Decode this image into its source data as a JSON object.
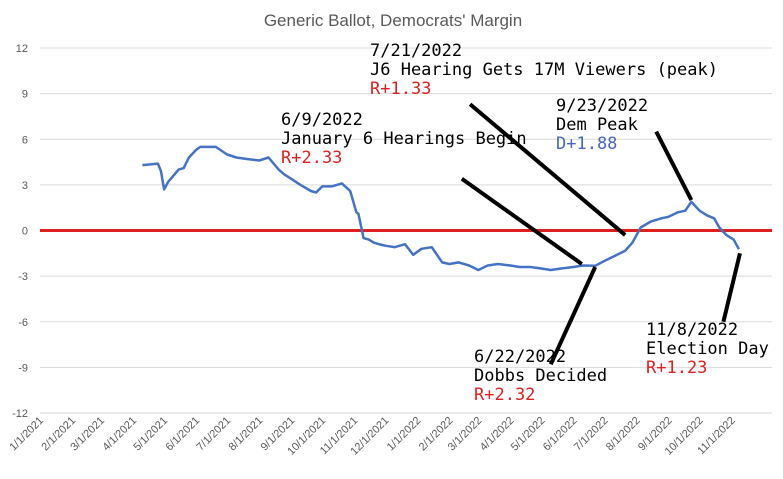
{
  "chart_data": {
    "type": "line",
    "title": "Generic Ballot, Democrats' Margin",
    "xlabel": "",
    "ylabel": "",
    "ylim": [
      -12,
      12
    ],
    "yticks": [
      "12",
      "9",
      "6",
      "3",
      "0",
      "-3",
      "-6",
      "-9",
      "-12"
    ],
    "xlim": [
      "2021-01-01",
      "2022-12-10"
    ],
    "xticks": [
      "1/1/2021",
      "2/1/2021",
      "3/1/2021",
      "4/1/2021",
      "5/1/2021",
      "6/1/2021",
      "7/1/2021",
      "8/1/2021",
      "9/1/2021",
      "10/1/2021",
      "11/1/2021",
      "12/1/2021",
      "1/1/2022",
      "2/1/2022",
      "3/1/2022",
      "4/1/2022",
      "5/1/2022",
      "6/1/2022",
      "7/1/2022",
      "8/1/2022",
      "9/1/2022",
      "10/1/2022",
      "11/1/2022"
    ],
    "grid": true,
    "zero_line_color": "#e02020",
    "series_color": "#4472c4",
    "series": [
      {
        "name": "",
        "x": [
          "2021-04-10",
          "2021-04-25",
          "2021-04-28",
          "2021-05-01",
          "2021-05-05",
          "2021-05-15",
          "2021-05-20",
          "2021-05-25",
          "2021-06-01",
          "2021-06-05",
          "2021-06-20",
          "2021-07-01",
          "2021-07-10",
          "2021-07-20",
          "2021-08-01",
          "2021-08-10",
          "2021-08-20",
          "2021-08-25",
          "2021-09-01",
          "2021-09-10",
          "2021-09-20",
          "2021-09-25",
          "2021-10-01",
          "2021-10-10",
          "2021-10-20",
          "2021-10-28",
          "2021-11-03",
          "2021-11-05",
          "2021-11-10",
          "2021-11-15",
          "2021-11-20",
          "2021-11-25",
          "2021-12-01",
          "2021-12-10",
          "2021-12-20",
          "2021-12-28",
          "2022-01-05",
          "2022-01-15",
          "2022-01-25",
          "2022-02-01",
          "2022-02-10",
          "2022-02-20",
          "2022-03-01",
          "2022-03-10",
          "2022-03-20",
          "2022-04-01",
          "2022-04-10",
          "2022-04-20",
          "2022-05-01",
          "2022-05-10",
          "2022-05-20",
          "2022-06-01",
          "2022-06-10",
          "2022-06-22",
          "2022-07-01",
          "2022-07-10",
          "2022-07-21",
          "2022-07-28",
          "2022-08-05",
          "2022-08-15",
          "2022-08-25",
          "2022-09-01",
          "2022-09-10",
          "2022-09-17",
          "2022-09-23",
          "2022-10-01",
          "2022-10-08",
          "2022-10-15",
          "2022-10-20",
          "2022-10-27",
          "2022-11-03",
          "2022-11-08"
        ],
        "y": [
          4.3,
          4.4,
          3.9,
          2.7,
          3.2,
          4.0,
          4.1,
          4.8,
          5.3,
          5.5,
          5.5,
          5.0,
          4.8,
          4.7,
          4.6,
          4.8,
          4.0,
          3.7,
          3.4,
          3.0,
          2.6,
          2.5,
          2.9,
          2.9,
          3.1,
          2.6,
          1.2,
          1.1,
          -0.5,
          -0.6,
          -0.8,
          -0.9,
          -1.0,
          -1.1,
          -0.9,
          -1.6,
          -1.2,
          -1.1,
          -2.1,
          -2.2,
          -2.1,
          -2.3,
          -2.6,
          -2.3,
          -2.2,
          -2.3,
          -2.4,
          -2.4,
          -2.5,
          -2.6,
          -2.5,
          -2.4,
          -2.3,
          -2.32,
          -2.0,
          -1.7,
          -1.33,
          -0.8,
          0.2,
          0.6,
          0.8,
          0.9,
          1.2,
          1.3,
          1.88,
          1.3,
          1.0,
          0.8,
          0.2,
          -0.3,
          -0.6,
          -1.23
        ]
      }
    ],
    "annotations": [
      {
        "date_text": "7/21/2022",
        "event_text": "J6 Hearing Gets 17M Viewers (peak)",
        "margin_text": "R+1.33",
        "margin_color": "#e02020",
        "from_date": "2022-07-21",
        "from_value": -0.3,
        "to_date": "2022-02-21",
        "to_value": 8.3
      },
      {
        "date_text": "6/9/2022",
        "event_text": "January 6 Hearings Begin",
        "margin_text": "R+2.33",
        "margin_color": "#e02020",
        "from_date": "2022-06-09",
        "from_value": -2.2,
        "to_date": "2022-02-13",
        "to_value": 3.4
      },
      {
        "date_text": "9/23/2022",
        "event_text": "Dem Peak",
        "margin_text": "D+1.88",
        "margin_color": "#4466bb",
        "from_date": "2022-09-23",
        "from_value": 2.0,
        "to_date": "2022-08-20",
        "to_value": 6.5
      },
      {
        "date_text": "6/22/2022",
        "event_text": "Dobbs Decided",
        "margin_text": "R+2.32",
        "margin_color": "#e02020",
        "from_date": "2022-06-22",
        "from_value": -2.4,
        "to_date": "2022-05-10",
        "to_value": -8.8
      },
      {
        "date_text": "11/8/2022",
        "event_text": "Election Day",
        "margin_text": "R+1.23",
        "margin_color": "#e02020",
        "from_date": "2022-11-09",
        "from_value": -1.5,
        "to_date": "2022-10-24",
        "to_value": -6.0
      }
    ]
  }
}
